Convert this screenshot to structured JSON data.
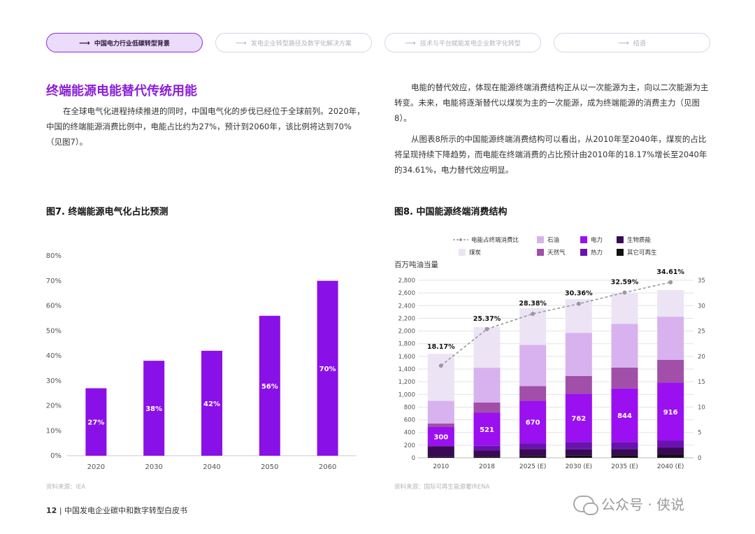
{
  "nav": [
    {
      "label": "中国电力行业低碳转型背景",
      "active": true
    },
    {
      "label": "发电企业转型路径及数字化解决方案",
      "active": false
    },
    {
      "label": "技术与平台赋能发电企业数字化转型",
      "active": false
    },
    {
      "label": "结语",
      "active": false
    }
  ],
  "section_title": "终端能源电能替代传统用能",
  "left_para": "在全球电气化进程持续推进的同时，中国电气化的步伐已经位于全球前列。2020年，中国的终端能源消费比例中，电能占比约为27%，预计到2060年，该比例将达到70%（见图7）。",
  "right_para1": "电能的替代效应，体现在能源终端消费结构正从以一次能源为主，向以二次能源为主转变。未来，电能将逐渐替代以煤炭为主的一次能源，成为终端能源的消费主力（见图8）。",
  "right_para2": "从图表8所示的中国能源终端消费结构可以看出，从2010年至2040年，煤炭的占比将呈现持续下降趋势，而电能在终端消费的占比预计由2010年的18.17%增长至2040年的34.61%，电力替代效应明显。",
  "fig7": {
    "title": "图7. 终端能源电气化占比预测",
    "source": "资料来源：IEA"
  },
  "fig8": {
    "title": "图8. 中国能源终端消费结构",
    "source": "资料来源：国际可再生能源署IRENA",
    "unit": "百万吨油当量"
  },
  "footer": {
    "page": "12",
    "text": "中国发电企业碳中和数字转型白皮书"
  },
  "watermark": "公众号 · 侠说",
  "colors": {
    "accent": "#8a1fd6",
    "bar7": "#8a10e8"
  },
  "chart_data": [
    {
      "type": "bar",
      "categories": [
        "2020",
        "2030",
        "2040",
        "2050",
        "2060"
      ],
      "values": [
        27,
        38,
        42,
        56,
        70
      ],
      "value_labels": [
        "27%",
        "38%",
        "42%",
        "56%",
        "70%"
      ],
      "ylim": [
        0,
        80
      ],
      "yticks": [
        "0%",
        "10%",
        "20%",
        "30%",
        "40%",
        "50%",
        "60%",
        "70%",
        "80%"
      ]
    },
    {
      "type": "bar",
      "stacked": true,
      "categories": [
        "2010",
        "2018",
        "2025 (E)",
        "2030 (E)",
        "2035 (E)",
        "2040 (E)"
      ],
      "ylim": [
        0,
        2800
      ],
      "y2lim": [
        0,
        35
      ],
      "yticks": [
        "0",
        "200",
        "400",
        "600",
        "800",
        "1,000",
        "1,200",
        "1,400",
        "1,600",
        "1,800",
        "2,000",
        "2,200",
        "2,400",
        "2,600",
        "2,800"
      ],
      "y2ticks": [
        "0",
        "5",
        "10",
        "15",
        "20",
        "25",
        "30",
        "35"
      ],
      "series": [
        {
          "name": "其它可再生",
          "color": "#111111",
          "values": [
            15,
            20,
            30,
            35,
            40,
            50
          ]
        },
        {
          "name": "生物质能",
          "color": "#3a0a55",
          "values": [
            170,
            100,
            110,
            100,
            100,
            110
          ]
        },
        {
          "name": "热力",
          "color": "#6a12b0",
          "values": [
            0,
            70,
            90,
            115,
            110,
            110
          ]
        },
        {
          "name": "电力",
          "color": "#9a10f0",
          "values": [
            300,
            521,
            670,
            762,
            844,
            916
          ]
        },
        {
          "name": "天然气",
          "color": "#a14fa8",
          "values": [
            55,
            160,
            230,
            280,
            330,
            360
          ]
        },
        {
          "name": "石油",
          "color": "#d8b2ee",
          "values": [
            360,
            550,
            650,
            680,
            690,
            680
          ]
        },
        {
          "name": "煤炭",
          "color": "#ece4f5",
          "values": [
            740,
            640,
            580,
            530,
            480,
            420
          ]
        }
      ],
      "bar_labels": [
        "300",
        "521",
        "670",
        "762",
        "844",
        "916"
      ],
      "line": {
        "name": "电能占终端消费比",
        "values": [
          18.17,
          25.37,
          28.38,
          30.36,
          32.59,
          34.61
        ],
        "labels": [
          "18.17%",
          "25.37%",
          "28.38%",
          "30.36%",
          "32.59%",
          "34.61%"
        ]
      },
      "legend_order": [
        "电能占终端消费比",
        "石油",
        "电力",
        "生物质能",
        "煤炭",
        "天然气",
        "热力",
        "其它可再生"
      ]
    }
  ]
}
